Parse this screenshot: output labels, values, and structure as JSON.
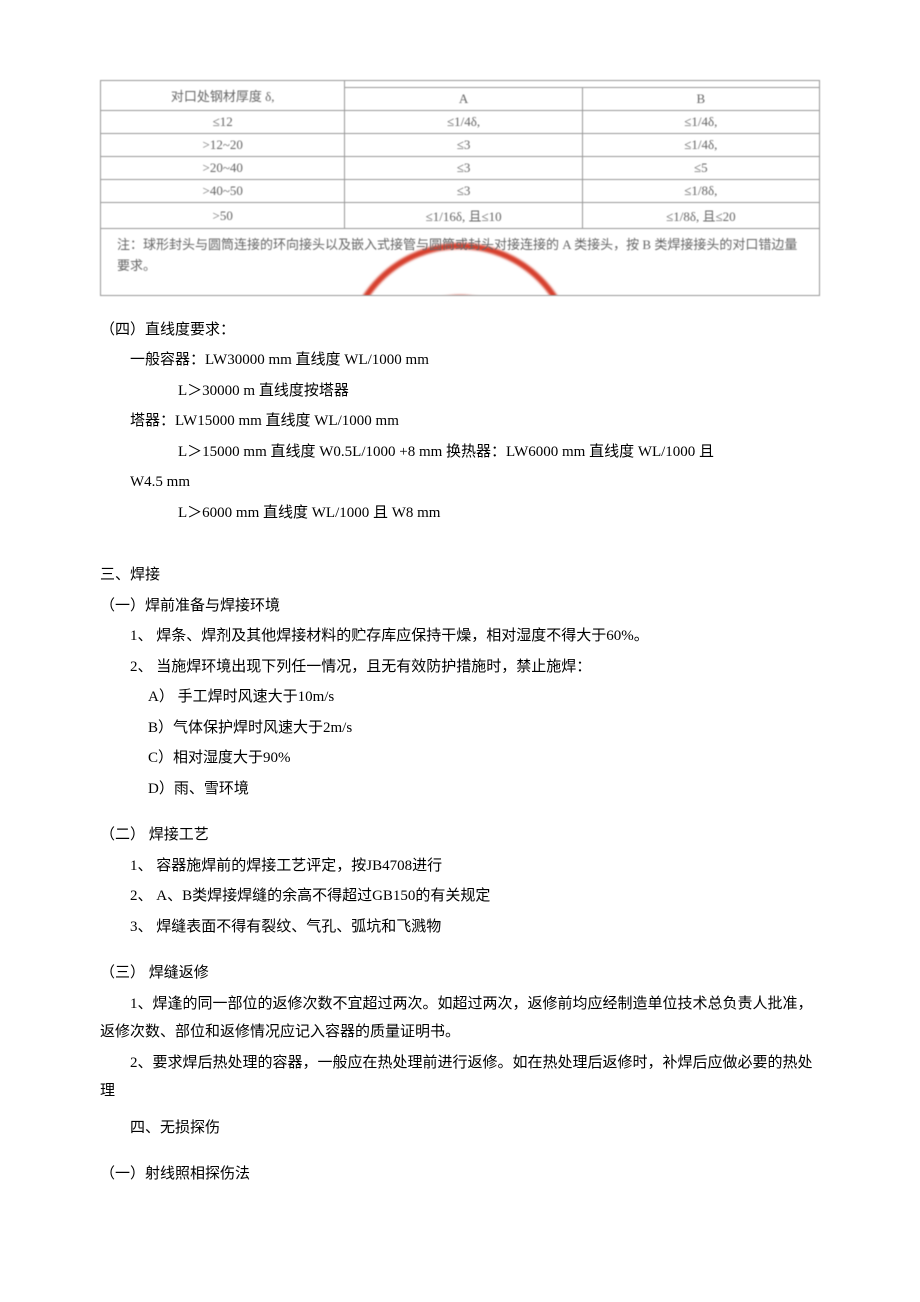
{
  "table": {
    "header_col1": "对口处钢材厚度 δ,",
    "header_colA": "A",
    "header_colB": "B",
    "rows": [
      {
        "c1": "≤12",
        "a": "≤1/4δ,",
        "b": "≤1/4δ,"
      },
      {
        "c1": ">12~20",
        "a": "≤3",
        "b": "≤1/4δ,"
      },
      {
        "c1": ">20~40",
        "a": "≤3",
        "b": "≤5"
      },
      {
        "c1": ">40~50",
        "a": "≤3",
        "b": "≤1/8δ,"
      },
      {
        "c1": ">50",
        "a": "≤1/16δ, 且≤10",
        "b": "≤1/8δ, 且≤20"
      }
    ],
    "note_label": "注：",
    "note_text": "球形封头与圆筒连接的环向接头以及嵌入式接管与圆筒或封头对接连接的 A 类接头，按 B 类焊接接头的对口错边量要求。"
  },
  "s4": {
    "title": "（四）直线度要求：",
    "l1": "一般容器：LW30000 mm     直线度 WL/1000 mm",
    "l2": "L＞30000 m 直线度按塔器",
    "l3": "塔器：LW15000 mm     直线度 WL/1000 mm",
    "l4": "L＞15000 mm 直线度 W0.5L/1000 +8 mm 换热器：LW6000 mm     直线度 WL/1000 且",
    "l5": "W4.5 mm",
    "l6": "L＞6000 mm   直线度 WL/1000 且 W8 mm"
  },
  "s_weld": {
    "title": "三、焊接",
    "sub1_title": "（一）焊前准备与焊接环境",
    "sub1_1": "1、 焊条、焊剂及其他焊接材料的贮存库应保持干燥，相对湿度不得大于60%。",
    "sub1_2": "2、 当施焊环境出现下列任一情况，且无有效防护措施时，禁止施焊：",
    "sub1_2a": "A）  手工焊时风速大于10m/s",
    "sub1_2b": "B）气体保护焊时风速大于2m/s",
    "sub1_2c": "C）相对湿度大于90%",
    "sub1_2d": "D）雨、雪环境",
    "sub2_title": "（二）     焊接工艺",
    "sub2_1": "1、 容器施焊前的焊接工艺评定，按JB4708进行",
    "sub2_2": "2、 A、B类焊接焊缝的余高不得超过GB150的有关规定",
    "sub2_3": "3、 焊缝表面不得有裂纹、气孔、弧坑和飞溅物",
    "sub3_title": "（三）     焊缝返修",
    "sub3_1": "1、焊逢的同一部位的返修次数不宜超过两次。如超过两次，返修前均应经制造单位技术总负责人批准，返修次数、部位和返修情况应记入容器的质量证明书。",
    "sub3_2": "2、要求焊后热处理的容器，一般应在热处理前进行返修。如在热处理后返修时，补焊后应做必要的热处理"
  },
  "s_ndt": {
    "title": "四、无损探伤",
    "sub1": "（一）射线照相探伤法"
  }
}
